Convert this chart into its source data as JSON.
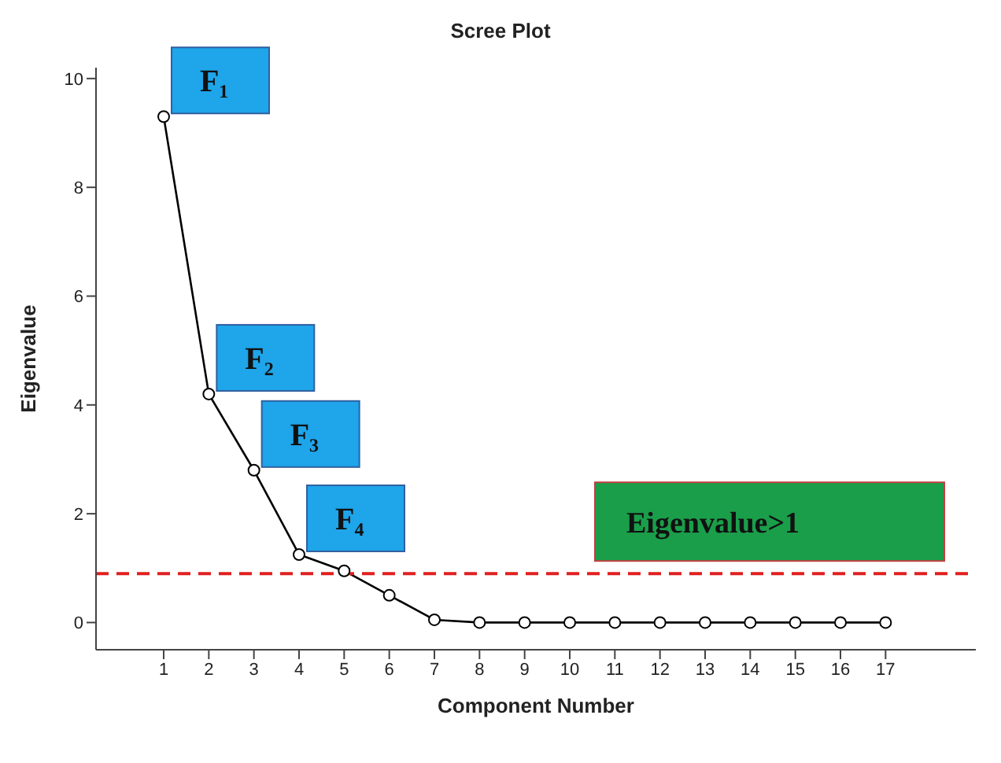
{
  "chart_data": {
    "type": "line",
    "title": "Scree Plot",
    "xlabel": "Component Number",
    "ylabel": "Eigenvalue",
    "x": [
      1,
      2,
      3,
      4,
      5,
      6,
      7,
      8,
      9,
      10,
      11,
      12,
      13,
      14,
      15,
      16,
      17
    ],
    "series": [
      {
        "color": "#000000",
        "values": [
          9.3,
          4.2,
          2.8,
          1.25,
          0.95,
          0.5,
          0.05,
          0,
          0,
          0,
          0,
          0,
          0,
          0,
          0,
          0,
          0
        ]
      }
    ],
    "xlim": [
      -0.5,
      19
    ],
    "xticks": [
      1,
      2,
      3,
      4,
      5,
      6,
      7,
      8,
      9,
      10,
      11,
      12,
      13,
      14,
      15,
      16,
      17
    ],
    "ylim": [
      -0.5,
      10.2
    ],
    "yticks": [
      0,
      2,
      4,
      6,
      8,
      10
    ],
    "marker": "circle",
    "ref_lines": [
      {
        "axis": "y",
        "value": 0.9,
        "label": "Eigenvalue>1",
        "color": "#e02020",
        "line_style": "dashed"
      }
    ],
    "annotations": [
      {
        "text": "F₁",
        "x": 1,
        "y": 9.3
      },
      {
        "text": "F₂",
        "x": 2,
        "y": 4.2
      },
      {
        "text": "F₃",
        "x": 3,
        "y": 2.8
      },
      {
        "text": "F₄",
        "x": 4,
        "y": 1.25
      }
    ]
  }
}
